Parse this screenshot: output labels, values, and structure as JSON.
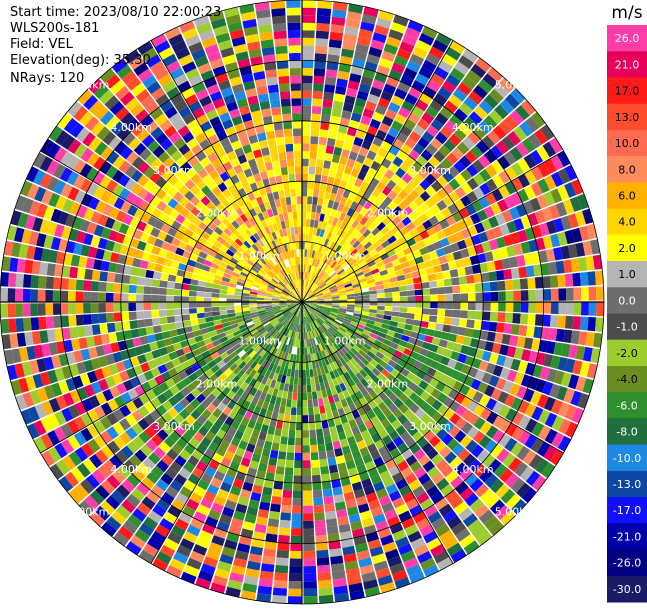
{
  "info": {
    "start_time": "Start time: 2023/08/10 22:00:23",
    "station": "WLS200s-181",
    "field": "Field: VEL",
    "elevation": "Elevation(deg): 35.30",
    "nrays": "NRays: 120"
  },
  "chart_data": {
    "type": "heatmap",
    "projection": "polar (PPI)",
    "field": "VEL",
    "unit": "m/s",
    "nrays": 120,
    "range_rings_km": [
      1,
      2,
      3,
      4,
      5
    ],
    "range_labels": [
      "1.00km",
      "2.00km",
      "3.00km",
      "4.00km",
      "5.00km"
    ],
    "colorbar": {
      "title": "m/s",
      "tick_labels": [
        "26.0",
        "21.0",
        "17.0",
        "13.0",
        "10.0",
        "8.0",
        "6.0",
        "4.0",
        "2.0",
        "1.0",
        "0.0",
        "-1.0",
        "-2.0",
        "-4.0",
        "-6.0",
        "-8.0",
        "-10.0",
        "-13.0",
        "-17.0",
        "-21.0",
        "-26.0",
        "-30.0"
      ],
      "colors": [
        "#ff3da8",
        "#e8005c",
        "#ff1a1a",
        "#ff4d2e",
        "#ff6b52",
        "#ff8a5c",
        "#ffb000",
        "#ffd500",
        "#ffff00",
        "#b4b4b4",
        "#6e6e6e",
        "#4d4d4d",
        "#9ccc2e",
        "#6b8e23",
        "#2f8f2f",
        "#1f6f3f",
        "#1e88e5",
        "#0d47a1",
        "#1010ff",
        "#0000aa",
        "#000080",
        "#1a1a66"
      ]
    },
    "pattern": [
      {
        "sector": "north (upper)",
        "near_range": "yellow / orange (+2 to +8 m/s)"
      },
      {
        "sector": "south (lower)",
        "near_range": "green (-2 to -8 m/s)"
      },
      {
        "sector": "east-west axis",
        "near_range": "grey (~0 m/s)"
      },
      {
        "sector": "outer rings",
        "near_range": "noisy, all colors"
      }
    ]
  }
}
